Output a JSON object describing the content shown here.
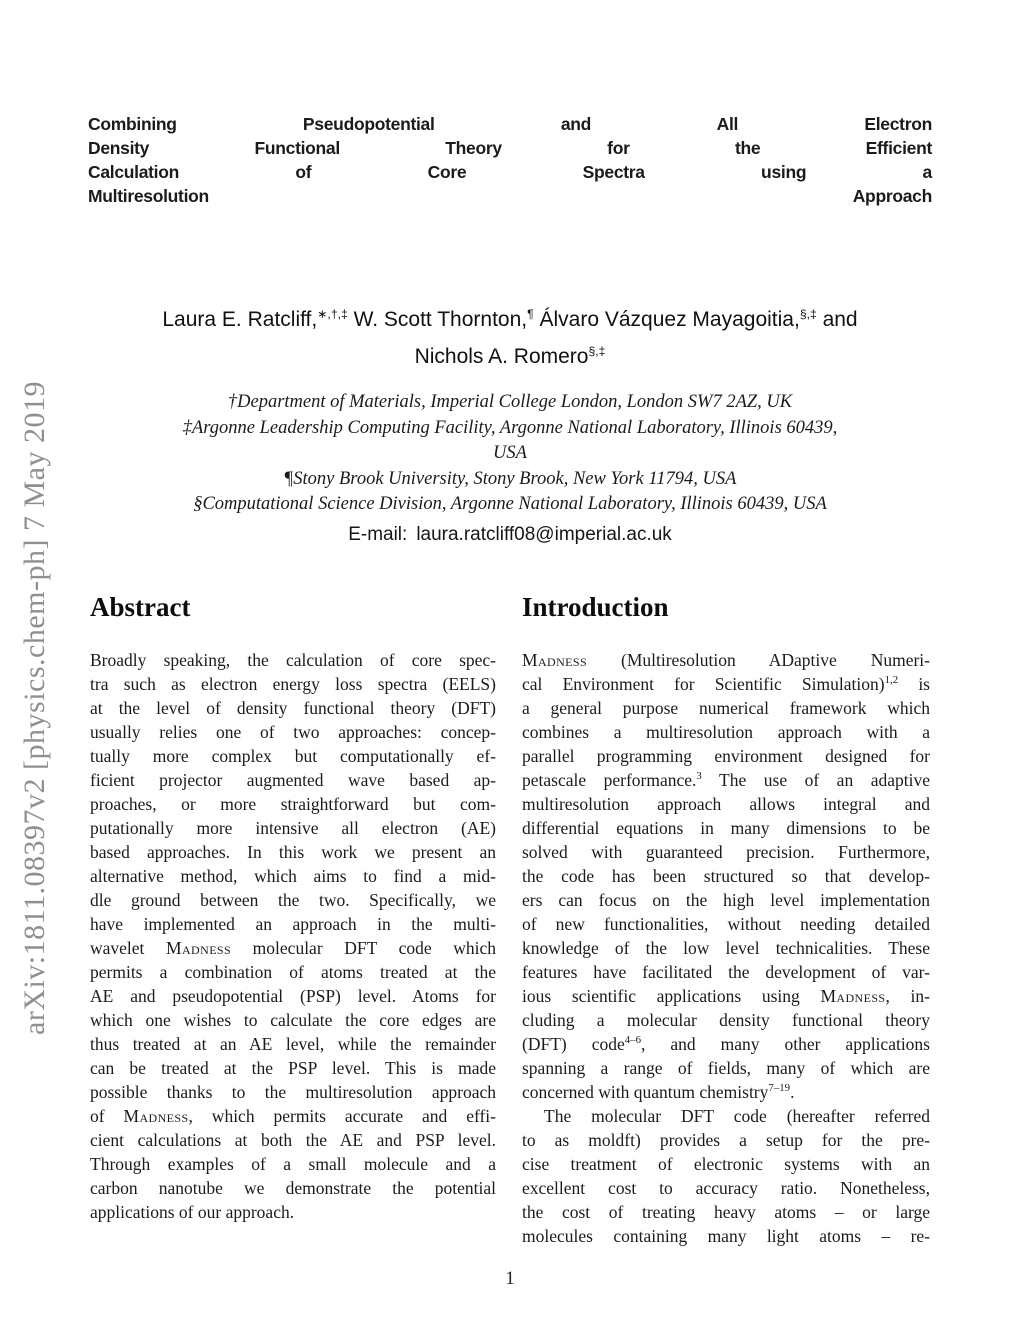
{
  "watermark": {
    "text": "arXiv:1811.08397v2 [physics.chem-ph] 7 May 2019"
  },
  "title": {
    "lines": [
      "Combining Pseudopotential and All Electron",
      "Density Functional Theory for the Efficient",
      "Calculation of Core Spectra using a",
      "Multiresolution Approach"
    ]
  },
  "authors": {
    "line1_html": "Laura E. Ratcliff,<sup>∗,†,‡</sup> W. Scott Thornton,<sup>¶</sup> Álvaro Vázquez Mayagoitia,<sup>§,‡</sup> and",
    "line2_html": "Nichols A. Romero<sup>§,‡</sup>"
  },
  "affiliations": {
    "lines": [
      "†Department of Materials, Imperial College London, London SW7 2AZ, UK",
      "‡Argonne Leadership Computing Facility, Argonne National Laboratory, Illinois 60439,",
      "USA",
      "¶Stony Brook University, Stony Brook, New York 11794, USA",
      "§Computational Science Division, Argonne National Laboratory, Illinois 60439, USA"
    ]
  },
  "contact": {
    "email_label": "E-mail:",
    "email_address": "laura.ratcliff08@imperial.ac.uk"
  },
  "abstract": {
    "heading": "Abstract",
    "lines": [
      "Broadly speaking, the calculation of core spec-",
      "tra such as electron energy loss spectra (EELS)",
      "at the level of density functional theory (DFT)",
      "usually relies one of two approaches: concep-",
      "tually more complex but computationally ef-",
      "ficient projector augmented wave based ap-",
      "proaches, or more straightforward but com-",
      "putationally more intensive all electron (AE)",
      "based approaches. In this work we present an",
      "alternative method, which aims to find a mid-",
      "dle ground between the two.  Specifically, we",
      "have implemented an approach in the multi-",
      "wavelet <span class=\"sc\">Madness</span> molecular DFT code which",
      "permits a combination of atoms treated at the",
      "AE and pseudopotential (PSP) level. Atoms for",
      "which one wishes to calculate the core edges are",
      "thus treated at an AE level, while the remainder",
      "can be treated at the PSP level.  This is made",
      "possible thanks to the multiresolution approach",
      "of <span class=\"sc\">Madness</span>, which permits accurate and effi-",
      "cient calculations at both the AE and PSP level.",
      "Through examples of a small molecule and a",
      "carbon nanotube we demonstrate the potential",
      "applications of our approach."
    ]
  },
  "introduction": {
    "heading": "Introduction",
    "lines": [
      "<span class=\"sc\">Madness</span> (Multiresolution ADaptive Numeri-",
      "cal Environment for Scientific Simulation)<sup>1,2</sup> is",
      "a general purpose numerical framework which",
      "combines a multiresolution approach with a",
      "parallel programming environment designed for",
      "petascale performance.<sup>3</sup> The use of an adaptive",
      "multiresolution approach allows integral and",
      "differential equations in many dimensions to be",
      "solved with guaranteed precision. Furthermore,",
      "the code has been structured so that develop-",
      "ers can focus on the high level implementation",
      "of new functionalities, without needing detailed",
      "knowledge of the low level technicalities. These",
      "features have facilitated the development of var-",
      "ious scientific applications using <span class=\"sc\">Madness</span>, in-",
      "cluding a molecular density functional theory",
      "(DFT) code<sup>4–6</sup>, and many other applications",
      "spanning a range of fields, many of which are",
      "concerned with quantum chemistry<sup>7–19</sup>.",
      "The molecular DFT code (hereafter referred",
      "to as moldft) provides a setup for the pre-",
      "cise treatment of electronic systems with an",
      "excellent cost to accuracy ratio.  Nonetheless,",
      "the cost of treating heavy atoms – or large",
      "molecules containing many light atoms – re-"
    ]
  },
  "footer": {
    "page_number": "1"
  }
}
